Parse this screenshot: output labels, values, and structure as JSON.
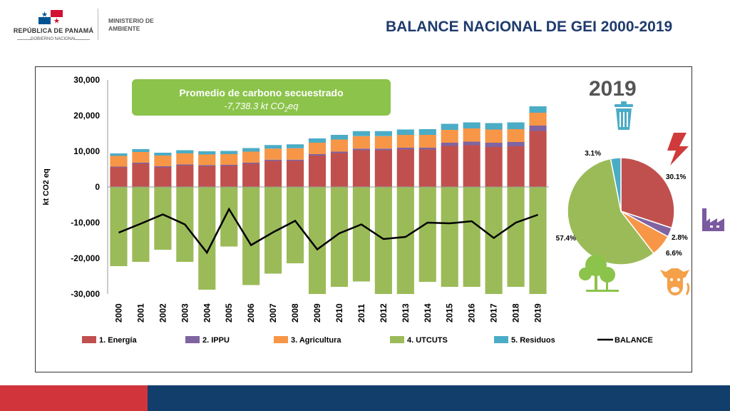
{
  "header": {
    "country": "REPÚBLICA DE PANAMÁ",
    "government": "GOBIERNO NACIONAL",
    "ministry": "MINISTERIO DE AMBIENTE",
    "title": "BALANCE NACIONAL DE GEI 2000-2019"
  },
  "banner": {
    "title": "Promedio de carbono secuestrado",
    "value_prefix": "-7,738.3 kt CO",
    "value_sub": "2",
    "value_suffix": "eq"
  },
  "pie_year": "2019",
  "colors": {
    "energia": "#c0504d",
    "ippu": "#8064a2",
    "agricultura": "#f79646",
    "utcuts": "#9bbb59",
    "residuos": "#4bacc6",
    "balance": "#000000",
    "title": "#1f3b6e",
    "banner": "#8cc34b"
  },
  "chart_data": [
    {
      "type": "bar",
      "stacked": true,
      "ylabel": "kt CO2 eq",
      "ylim": [
        -30000,
        30000
      ],
      "yticks": [
        "30,000",
        "20,000",
        "10,000",
        "0",
        "-10,000",
        "-20,000",
        "-30,000"
      ],
      "ytick_values": [
        30000,
        20000,
        10000,
        0,
        -10000,
        -20000,
        -30000
      ],
      "categories": [
        "2000",
        "2001",
        "2002",
        "2003",
        "2004",
        "2005",
        "2006",
        "2007",
        "2008",
        "2009",
        "2010",
        "2011",
        "2012",
        "2013",
        "2014",
        "2015",
        "2016",
        "2017",
        "2018",
        "2019"
      ],
      "series": [
        {
          "name": "1. Energía",
          "key": "energia",
          "values": [
            5500,
            6500,
            5500,
            6000,
            5800,
            5900,
            6500,
            7300,
            7300,
            8800,
            9500,
            10300,
            10300,
            10500,
            10500,
            11500,
            11700,
            11200,
            11400,
            15700
          ]
        },
        {
          "name": "2. IPPU",
          "key": "ippu",
          "values": [
            200,
            300,
            300,
            300,
            300,
            300,
            300,
            350,
            350,
            400,
            400,
            450,
            450,
            500,
            500,
            900,
            1000,
            1200,
            1200,
            1500
          ]
        },
        {
          "name": "3. Agricultura",
          "key": "agricultura",
          "values": [
            3000,
            3000,
            3000,
            3100,
            3000,
            3000,
            3100,
            3100,
            3200,
            3200,
            3400,
            3500,
            3500,
            3600,
            3600,
            3600,
            3700,
            3700,
            3600,
            3600
          ]
        },
        {
          "name": "4. UTCUTS",
          "key": "utcuts",
          "values": [
            -22200,
            -21000,
            -17600,
            -21000,
            -28800,
            -16700,
            -27500,
            -24300,
            -21400,
            -30500,
            -28000,
            -26500,
            -30500,
            -30500,
            -26600,
            -28000,
            -28000,
            -30500,
            -28000,
            -30500
          ]
        },
        {
          "name": "5. Residuos",
          "key": "residuos",
          "values": [
            700,
            800,
            800,
            900,
            900,
            900,
            1000,
            1000,
            1100,
            1200,
            1300,
            1400,
            1400,
            1500,
            1600,
            1700,
            1700,
            1800,
            1900,
            1800
          ]
        },
        {
          "name": "BALANCE",
          "key": "balance",
          "type": "line",
          "values": [
            -12800,
            -10300,
            -7700,
            -10500,
            -18400,
            -6200,
            -16300,
            -12700,
            -9500,
            -17500,
            -13000,
            -10500,
            -14600,
            -14000,
            -10000,
            -10200,
            -9600,
            -14300,
            -10000,
            -7800
          ]
        }
      ]
    },
    {
      "type": "pie",
      "title": "2019",
      "slices": [
        {
          "key": "energia",
          "value": 30.1,
          "label": "30.1%"
        },
        {
          "key": "ippu",
          "value": 2.8,
          "label": "2.8%"
        },
        {
          "key": "agricultura",
          "value": 6.6,
          "label": "6.6%"
        },
        {
          "key": "utcuts",
          "value": 57.4,
          "label": "57.4%"
        },
        {
          "key": "residuos",
          "value": 3.1,
          "label": "3.1%"
        }
      ]
    }
  ],
  "icons": [
    "panama-flag-icon",
    "trash-can-icon",
    "lightning-icon",
    "factory-icon",
    "trees-icon",
    "cow-icon"
  ]
}
